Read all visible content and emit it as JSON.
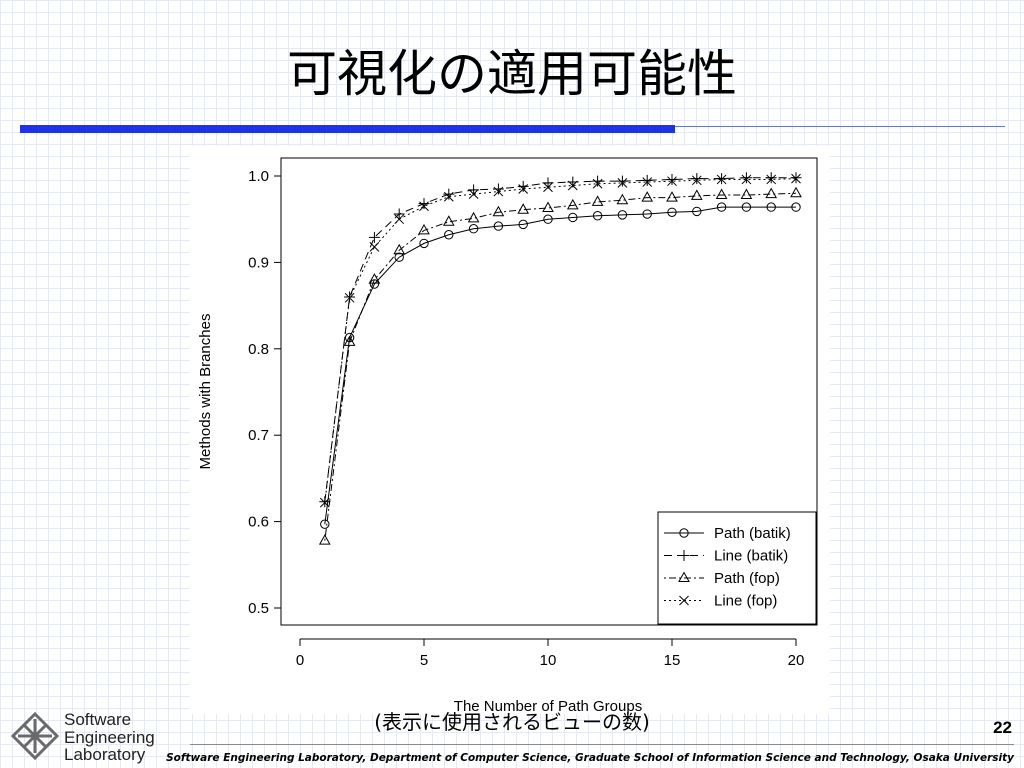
{
  "slide": {
    "title": "可視化の適用可能性",
    "caption": "(表示に使用されるビューの数)",
    "page_number": "22",
    "footer": "Software Engineering Laboratory, Department of Computer Science, Graduate School of Information Science and Technology, Osaka University"
  },
  "logo": {
    "line1": "Software",
    "line2": "Engineering",
    "line3": "Laboratory"
  },
  "colors": {
    "accent_bar": "#1f32e6",
    "accent_line": "#6a78c9",
    "grid": "#e4e9f3"
  },
  "chart_data": {
    "type": "line",
    "title": "",
    "xlabel": "The Number of Path Groups",
    "ylabel": "Methods with Branches",
    "xlim": [
      0,
      20
    ],
    "ylim": [
      0.5,
      1.0
    ],
    "xticks": [
      0,
      5,
      10,
      15,
      20
    ],
    "yticks": [
      "0.5",
      "0.6",
      "0.7",
      "0.8",
      "0.9",
      "1.0"
    ],
    "legend_position": "bottom-right",
    "x": [
      1,
      2,
      3,
      4,
      5,
      6,
      7,
      8,
      9,
      10,
      11,
      12,
      13,
      14,
      15,
      16,
      17,
      18,
      19,
      20
    ],
    "series": [
      {
        "name": "Path (batik)",
        "marker": "circle",
        "dash": "",
        "values": [
          0.597,
          0.813,
          0.875,
          0.906,
          0.922,
          0.932,
          0.939,
          0.942,
          0.944,
          0.95,
          0.952,
          0.954,
          0.955,
          0.956,
          0.958,
          0.959,
          0.964,
          0.964,
          0.964,
          0.964
        ]
      },
      {
        "name": "Line (batik)",
        "marker": "plus",
        "dash": "8 5",
        "values": [
          0.623,
          0.86,
          0.929,
          0.956,
          0.968,
          0.979,
          0.984,
          0.985,
          0.988,
          0.992,
          0.993,
          0.994,
          0.994,
          0.995,
          0.996,
          0.997,
          0.997,
          0.998,
          0.998,
          0.998
        ]
      },
      {
        "name": "Path (fop)",
        "marker": "triangle",
        "dash": "2 3 7 3",
        "values": [
          0.578,
          0.808,
          0.88,
          0.914,
          0.937,
          0.947,
          0.951,
          0.958,
          0.961,
          0.963,
          0.966,
          0.97,
          0.972,
          0.975,
          0.975,
          0.977,
          0.978,
          0.978,
          0.979,
          0.98
        ]
      },
      {
        "name": "Line (fop)",
        "marker": "cross",
        "dash": "2 3",
        "values": [
          0.622,
          0.859,
          0.918,
          0.95,
          0.965,
          0.976,
          0.979,
          0.982,
          0.985,
          0.987,
          0.989,
          0.991,
          0.992,
          0.993,
          0.994,
          0.995,
          0.996,
          0.996,
          0.996,
          0.997
        ]
      }
    ]
  }
}
